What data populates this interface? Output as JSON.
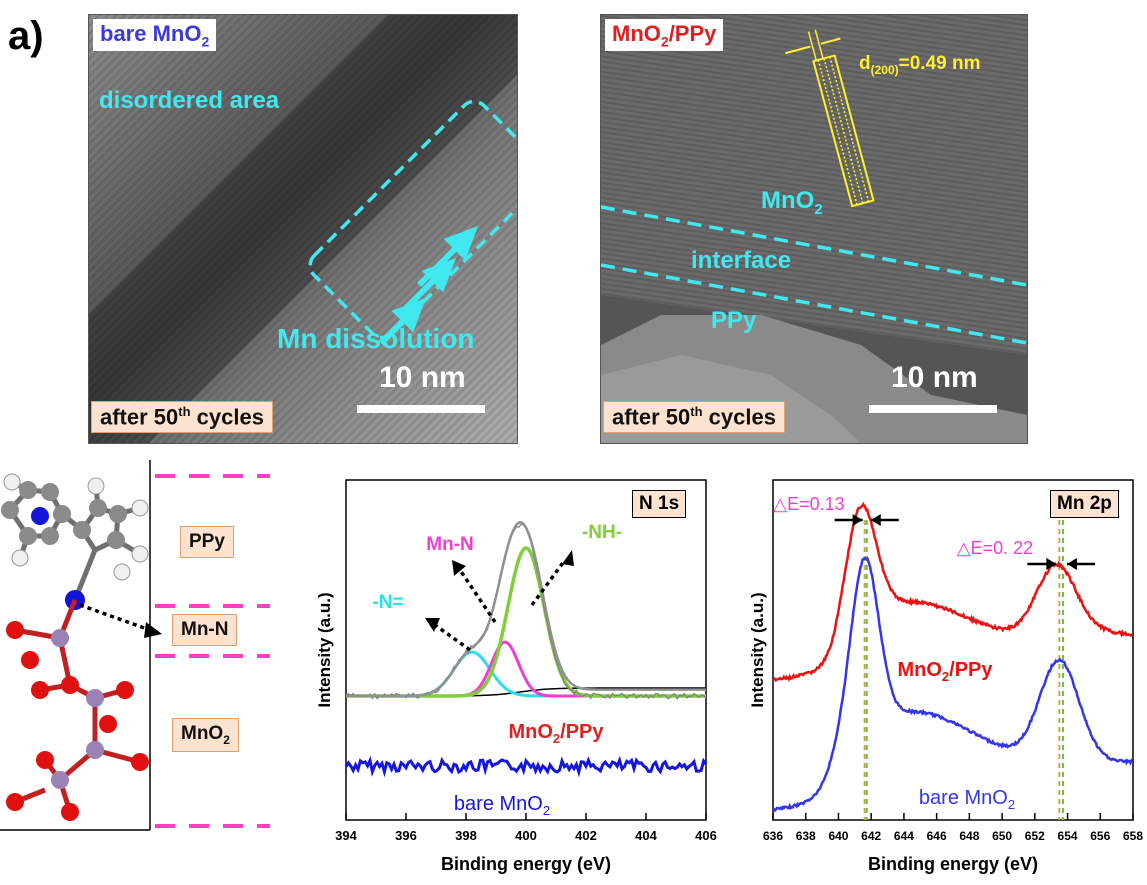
{
  "figure": {
    "panel_label": "a)",
    "tem_left": {
      "title_main": "bare MnO",
      "title_sub": "2",
      "disordered_label": "disordered area",
      "dissolution_label": "Mn dissolution",
      "scale_label": "10 nm",
      "cycles_prefix": "after 50",
      "cycles_sup": "th",
      "cycles_suffix": " cycles",
      "colors": {
        "title": "#3a3ad8",
        "annotation": "#40e8ef"
      }
    },
    "tem_right": {
      "title_a": "MnO",
      "title_sub": "2",
      "title_b": "/PPy",
      "spacing_d": "d",
      "spacing_sub": "(200)",
      "spacing_value": "=0.49  nm",
      "mno2_label": "MnO",
      "mno2_sub": "2",
      "interface_label": "interface",
      "ppy_label": "PPy",
      "scale_label": "10 nm",
      "cycles_prefix": "after 50",
      "cycles_sup": "th",
      "cycles_suffix": " cycles",
      "colors": {
        "title": "#e02020",
        "spacing": "#ffee33",
        "annotation": "#40e8ef"
      }
    },
    "structure": {
      "ppy_label": "PPy",
      "mnn_label": "Mn-N",
      "mno2_label": "MnO",
      "mno2_sub": "2",
      "colors": {
        "dash": "#ff3fbf",
        "N": "#1414d8",
        "C": "#8a8a8a",
        "H": "#f0f0f0",
        "Mn": "#9a82b4",
        "O": "#e01010"
      }
    }
  },
  "chart_data": [
    {
      "type": "line",
      "title": "N 1s",
      "xlabel": "Binding energy (eV)",
      "ylabel": "Intensity (a.u.)",
      "xlim": [
        394,
        406
      ],
      "xticks": [
        394,
        396,
        398,
        400,
        402,
        404,
        406
      ],
      "y_ticks_shown": false,
      "peak_labels": [
        "-N=",
        "Mn-N",
        "-NH-"
      ],
      "series": [
        {
          "name": "MnO2/PPy",
          "label_main": "MnO",
          "label_sub": "2",
          "label_suffix": "/PPy",
          "color": "#e02020",
          "peaks_eV": [
            398.2,
            399.3,
            400.0
          ]
        },
        {
          "name": "bare MnO2",
          "label_main": "bare MnO",
          "label_sub": "2",
          "color": "#1515e0"
        }
      ],
      "colors": {
        "raw": "#808080",
        "fit": "#909090",
        "N_eq": "#28e0e6",
        "Mn_N": "#ef3fcf",
        "NH": "#7fce3a"
      }
    },
    {
      "type": "line",
      "title": "Mn 2p",
      "xlabel": "Binding energy (eV)",
      "ylabel": "Intensity (a.u.)",
      "xlim": [
        636,
        658
      ],
      "xticks": [
        636,
        638,
        640,
        642,
        644,
        646,
        648,
        650,
        652,
        654,
        656,
        658
      ],
      "y_ticks_shown": false,
      "annotations": [
        {
          "text": "△E=0.13",
          "peak_eV": 641.6
        },
        {
          "text": "△E=0. 22",
          "peak_eV": 653.5
        }
      ],
      "series": [
        {
          "name": "MnO2/PPy",
          "label_main": "MnO",
          "label_sub": "2",
          "label_suffix": "/PPy",
          "color": "#ee1111",
          "peaks_eV": [
            641.4,
            653.3
          ]
        },
        {
          "name": "bare MnO2",
          "label_main": "bare MnO",
          "label_sub": "2",
          "color": "#3535ee",
          "peaks_eV": [
            641.6,
            653.5
          ]
        }
      ],
      "colors": {
        "annotation": "#ef3fcf"
      }
    }
  ]
}
